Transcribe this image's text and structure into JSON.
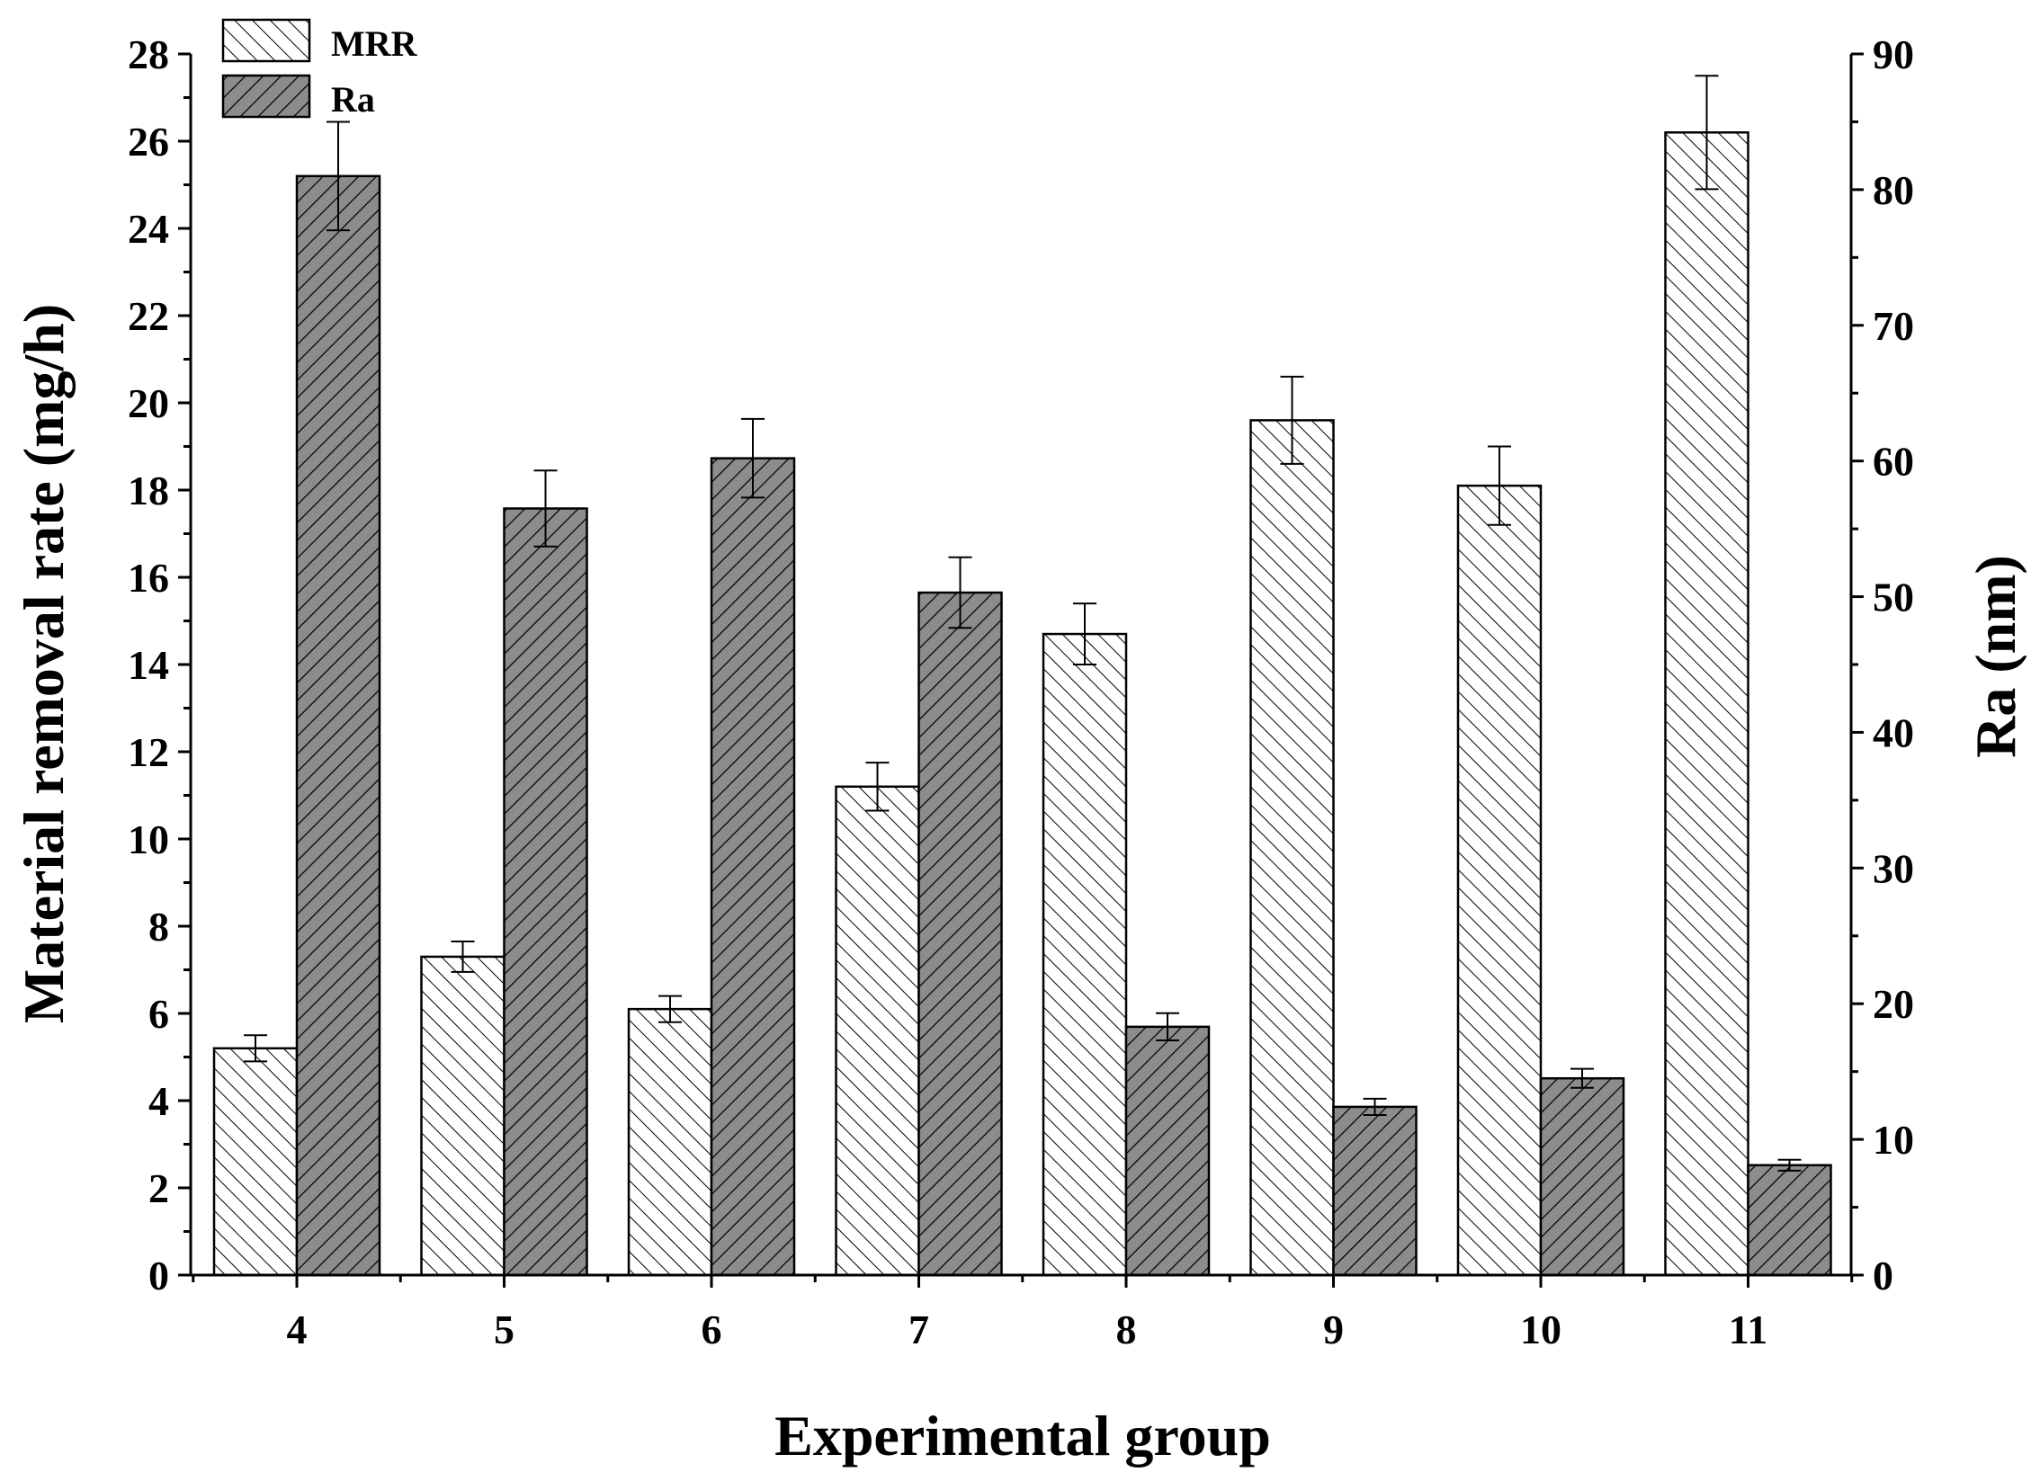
{
  "chart_data": {
    "type": "bar",
    "title": "",
    "xlabel": "Experimental group",
    "ylabel": "Material removal rate (mg/h)",
    "y2label": "Ra (nm)",
    "categories": [
      "4",
      "5",
      "6",
      "7",
      "8",
      "9",
      "10",
      "11"
    ],
    "ylim": [
      0,
      28
    ],
    "y2lim": [
      0,
      90
    ],
    "yticks": [
      0,
      2,
      4,
      6,
      8,
      10,
      12,
      14,
      16,
      18,
      20,
      22,
      24,
      26,
      28
    ],
    "y2ticks": [
      0,
      10,
      20,
      30,
      40,
      50,
      60,
      70,
      80,
      90
    ],
    "legend_position": "top-left",
    "series": [
      {
        "name": "MRR",
        "axis": "left",
        "values": [
          5.2,
          7.3,
          6.1,
          11.2,
          14.7,
          19.6,
          18.1,
          26.2
        ],
        "errors": [
          0.3,
          0.35,
          0.3,
          0.55,
          0.7,
          1.0,
          0.9,
          1.3
        ]
      },
      {
        "name": "Ra",
        "axis": "right",
        "values": [
          81.0,
          56.5,
          60.2,
          50.3,
          18.3,
          12.4,
          14.5,
          8.1
        ],
        "errors": [
          4.0,
          2.8,
          2.9,
          2.6,
          1.0,
          0.6,
          0.7,
          0.4
        ]
      }
    ],
    "colors": {
      "mrr_fill": "#ffffff",
      "ra_fill": "#8c8c8c",
      "line": "#000000"
    }
  }
}
